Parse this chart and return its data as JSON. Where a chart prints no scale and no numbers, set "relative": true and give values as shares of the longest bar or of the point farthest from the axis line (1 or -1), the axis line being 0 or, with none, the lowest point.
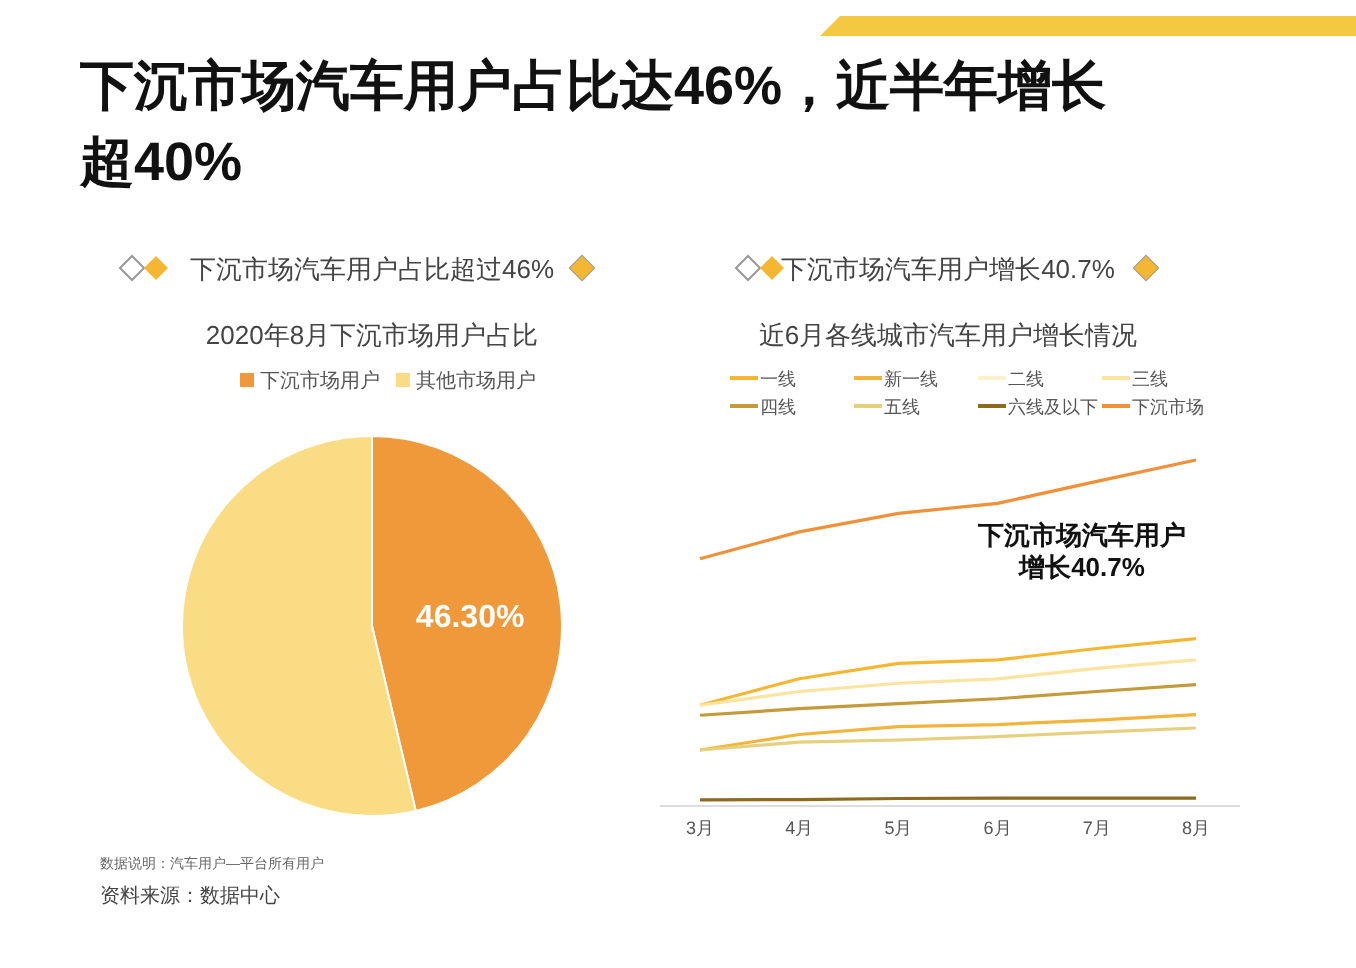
{
  "chart_data": [
    {
      "type": "pie",
      "title": "下沉市场汽车用户占比超过46%",
      "subtitle": "2020年8月下沉市场用户占比",
      "categories": [
        "下沉市场用户",
        "其他市场用户"
      ],
      "values": [
        46.3,
        53.7
      ],
      "colors": [
        "#f0993a",
        "#f9dc83"
      ],
      "value_labels": [
        "46.30%",
        null
      ],
      "legend": "top",
      "annotations": [
        "下沉市场汽车用户占比达46%，近半年增长超40%",
        "数据说明：汽车用户—平台所有用户",
        "资料来源：数据中心"
      ]
    },
    {
      "type": "line",
      "title": "下沉市场汽车用户增长40.7%",
      "subtitle": "近6月各线城市汽车用户增长情况",
      "relative": true,
      "legend": "top",
      "categories": [
        "3月",
        "4月",
        "5月",
        "6月",
        "7月",
        "8月"
      ],
      "series": [
        {
          "name": "一线",
          "color": "#f5b731",
          "values": [
            0.287,
            0.364,
            0.409,
            0.419,
            0.452,
            0.481
          ]
        },
        {
          "name": "新一线",
          "color": "#f2b43a",
          "values": [
            0.157,
            0.202,
            0.225,
            0.231,
            0.244,
            0.26
          ]
        },
        {
          "name": "二线",
          "color": "#fdf1c8",
          "values": [
            null,
            null,
            null,
            null,
            null,
            null
          ]
        },
        {
          "name": "三线",
          "color": "#fbe3a0",
          "values": [
            0.287,
            0.327,
            0.351,
            0.364,
            0.394,
            0.419
          ]
        },
        {
          "name": "四线",
          "color": "#c49a3a",
          "values": [
            0.258,
            0.277,
            0.292,
            0.306,
            0.327,
            0.347
          ]
        },
        {
          "name": "五线",
          "color": "#e6d07e",
          "values": [
            0.157,
            0.18,
            0.186,
            0.196,
            0.209,
            0.221
          ]
        },
        {
          "name": "六线及以下",
          "color": "#8c6a22",
          "values": [
            0.012,
            0.013,
            0.016,
            0.017,
            0.017,
            0.017
          ]
        },
        {
          "name": "下沉市场",
          "color": "#f0913a",
          "values": [
            0.713,
            0.791,
            0.845,
            0.874,
            0.938,
            1.0
          ]
        }
      ],
      "annotations": [
        "下沉市场汽车用户",
        "增长40.7%"
      ]
    }
  ]
}
